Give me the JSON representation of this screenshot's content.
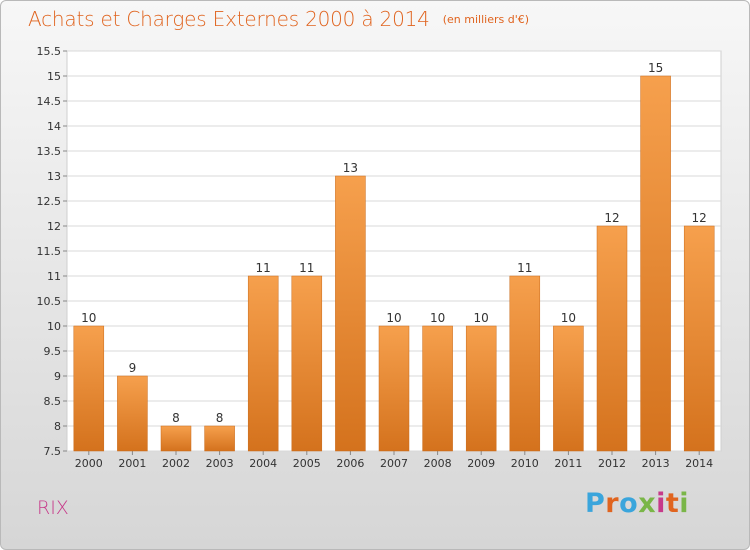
{
  "header": {
    "title": "Achats et Charges Externes 2000 à 2014",
    "unit": "(en milliers d'€)"
  },
  "footer": {
    "commune": "RIX",
    "logo": "Proxiti",
    "logo_colors": [
      "#3aa5dc",
      "#e0641f",
      "#3aa5dc",
      "#7ab648",
      "#c73a8a",
      "#e0641f",
      "#7ab648"
    ]
  },
  "colors": {
    "bar_top": "#f6a04d",
    "bar_bottom": "#d4721d",
    "title": "#e0641f",
    "commune": "#c73a8a"
  },
  "chart_data": {
    "type": "bar",
    "title": "Achats et Charges Externes 2000 à 2014",
    "subtitle": "(en milliers d'€)",
    "categories": [
      "2000",
      "2001",
      "2002",
      "2003",
      "2004",
      "2005",
      "2006",
      "2007",
      "2008",
      "2009",
      "2010",
      "2011",
      "2012",
      "2013",
      "2014"
    ],
    "values": [
      10,
      9,
      8,
      8,
      11,
      11,
      13,
      10,
      10,
      10,
      11,
      10,
      12,
      15,
      12
    ],
    "data_labels": [
      "10",
      "9",
      "8",
      "8",
      "11",
      "11",
      "13",
      "10",
      "10",
      "10",
      "11",
      "10",
      "12",
      "15",
      "12"
    ],
    "ylim": [
      7.5,
      15.5
    ],
    "yticks": [
      7.5,
      8,
      8.5,
      9,
      9.5,
      10,
      10.5,
      11,
      11.5,
      12,
      12.5,
      13,
      13.5,
      14,
      14.5,
      15,
      15.5
    ],
    "ytick_labels": [
      "7.5",
      "8",
      "8.5",
      "9",
      "9.5",
      "10",
      "10.5",
      "11",
      "11.5",
      "12",
      "12.5",
      "13",
      "13.5",
      "14",
      "14.5",
      "15",
      "15.5"
    ],
    "grid": true
  }
}
